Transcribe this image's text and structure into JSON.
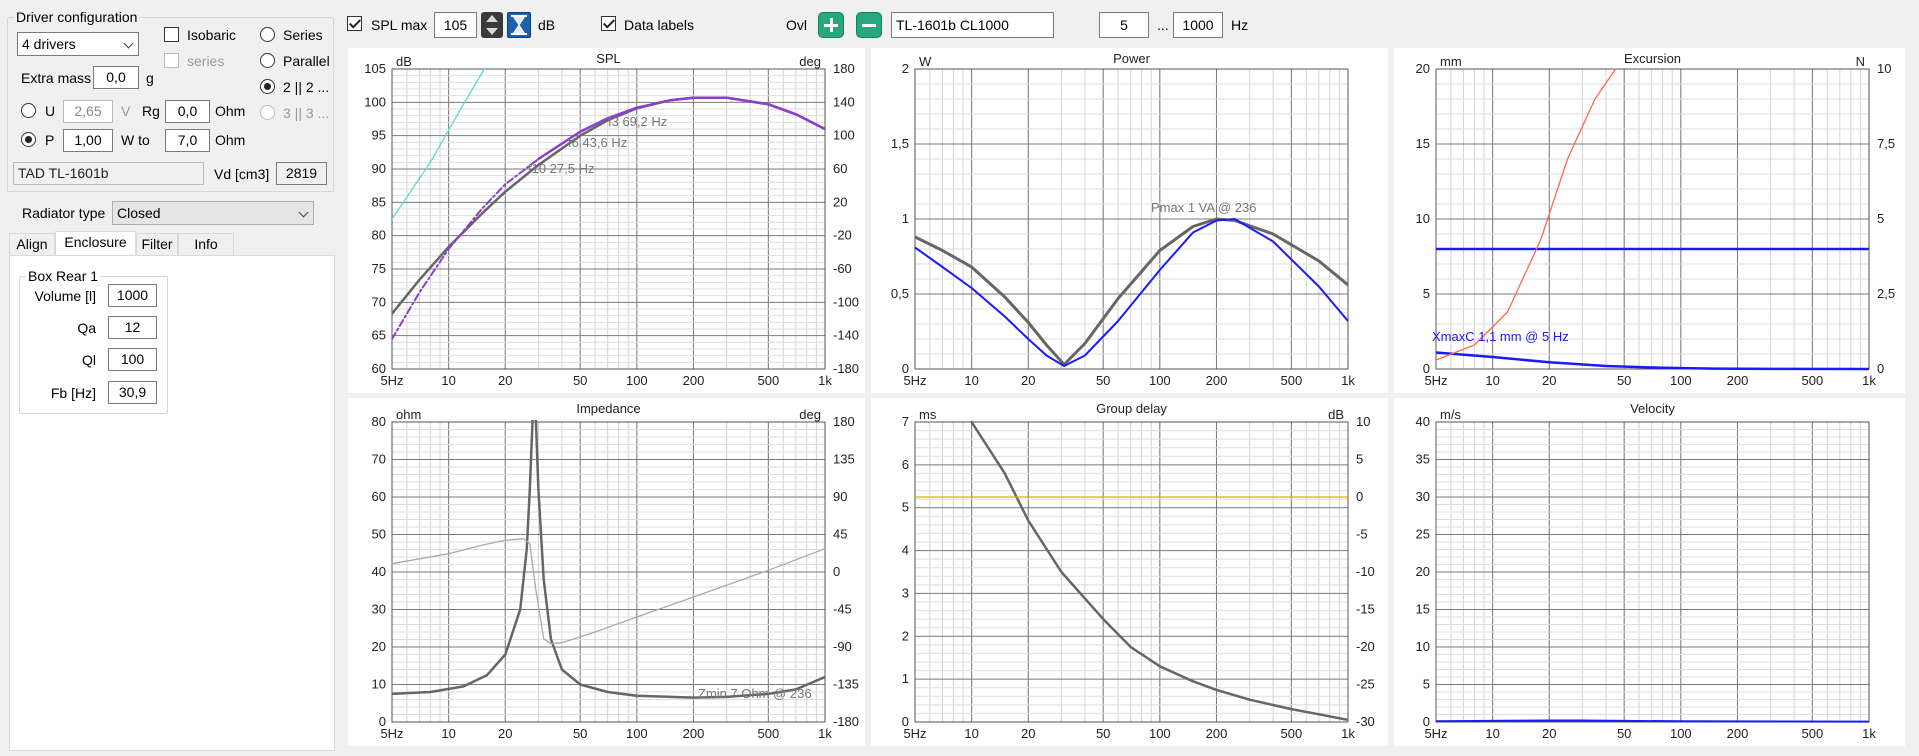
{
  "driver_config": {
    "title": "Driver configuration",
    "drivers_select": "4 drivers",
    "isobaric_label": "Isobaric",
    "series_sub_label": "series",
    "series_label": "Series",
    "parallel_label": "Parallel",
    "mode_22_label": "2 || 2 ...",
    "mode_33_label": "3 || 3 ...",
    "extra_mass_label": "Extra mass",
    "extra_mass_value": "0,0",
    "extra_mass_unit": "g",
    "u_label": "U",
    "u_value": "2,65",
    "u_unit": "V",
    "rg_label": "Rg",
    "rg_value": "0,0",
    "rg_unit": "Ohm",
    "p_label": "P",
    "p_value": "1,00",
    "wto_label": "W to",
    "wto_value": "7,0",
    "wto_unit": "Ohm",
    "driver_name": "TAD TL-1601b",
    "vd_label": "Vd [cm3]",
    "vd_value": "2819"
  },
  "radiator": {
    "label": "Radiator type",
    "value": "Closed"
  },
  "tabs": [
    "Align",
    "Enclosure",
    "Filter",
    "Info"
  ],
  "enclosure": {
    "group_title": "Box Rear 1",
    "volume_label": "Volume [l]",
    "volume_value": "1000",
    "qa_label": "Qa",
    "qa_value": "12",
    "ql_label": "Ql",
    "ql_value": "100",
    "fb_label": "Fb [Hz]",
    "fb_value": "30,9"
  },
  "toolbar": {
    "spl_max_label": "SPL max",
    "spl_max_value": "105",
    "spl_unit": "dB",
    "data_labels_label": "Data labels",
    "ovl_label": "Ovl",
    "name_value": "TL-1601b CL1000",
    "f_from": "5",
    "f_dots": "...",
    "f_to": "1000",
    "f_unit": "Hz"
  },
  "colors": {
    "curve_main": "#666666",
    "curve_blue": "#1a1aff",
    "curve_purple": "#8b3fd1",
    "curve_cyan": "#5ad8e0",
    "curve_orange": "#ff6a4a",
    "curve_yellow": "#d8b400",
    "accent_green": "#26a77d"
  },
  "chart_data": [
    {
      "id": "spl",
      "type": "line",
      "title": "SPL",
      "ylabel_left": "dB",
      "ylabel_right": "deg",
      "xscale": "log",
      "xlim": [
        5,
        1000
      ],
      "x_ticks": [
        "5Hz",
        "10",
        "20",
        "50",
        "100",
        "200",
        "500",
        "1k"
      ],
      "ylim": [
        60,
        105
      ],
      "y_ticks": [
        "60",
        "65",
        "70",
        "75",
        "80",
        "85",
        "90",
        "95",
        "100",
        "105"
      ],
      "y2lim": [
        -180,
        180
      ],
      "y2_ticks": [
        "-180",
        "-140",
        "-100",
        "-60",
        "-20",
        "20",
        "60",
        "100",
        "140",
        "180"
      ],
      "series": [
        {
          "axis": "left",
          "color": "#666666",
          "width": 2.5,
          "x": [
            5,
            7,
            10,
            15,
            20,
            30,
            50,
            70,
            100,
            150,
            200,
            300,
            500,
            700,
            1000
          ],
          "y": [
            68.3,
            73.4,
            78.3,
            83.3,
            86.6,
            90.6,
            95.0,
            97.3,
            99.1,
            100.3,
            100.7,
            100.7,
            99.7,
            98.2,
            96.0
          ]
        },
        {
          "axis": "left",
          "color": "#8b3fd1",
          "width": 2.5,
          "x": [
            30,
            50,
            70,
            100,
            150,
            200,
            300,
            500,
            700,
            1000
          ],
          "y": [
            91.5,
            95.6,
            97.6,
            99.2,
            100.3,
            100.7,
            100.7,
            99.7,
            98.2,
            96.0
          ]
        },
        {
          "axis": "left",
          "color": "#8b3fd1",
          "width": 2,
          "dash": "7 3 2 3",
          "x": [
            5,
            7,
            10,
            15,
            20,
            30
          ],
          "y": [
            64.5,
            71.5,
            78.0,
            84.0,
            87.7,
            91.5
          ]
        },
        {
          "axis": "right",
          "color": "#5ad8e0",
          "width": 1.3,
          "x": [
            5,
            8,
            12,
            15.5
          ],
          "y": [
            0,
            68,
            138,
            180
          ]
        }
      ],
      "annotations": [
        "f3 69,2 Hz",
        "f6 43,6 Hz",
        "f10 27,5 Hz"
      ]
    },
    {
      "id": "power",
      "type": "line",
      "title": "Power",
      "ylabel_left": "W",
      "xscale": "log",
      "xlim": [
        5,
        1000
      ],
      "x_ticks": [
        "5Hz",
        "10",
        "20",
        "50",
        "100",
        "200",
        "500",
        "1k"
      ],
      "ylim": [
        0,
        2
      ],
      "y_ticks": [
        "0",
        "0,5",
        "1",
        "1,5",
        "2"
      ],
      "series": [
        {
          "axis": "left",
          "color": "#666666",
          "width": 3,
          "x": [
            5,
            7,
            10,
            15,
            20,
            25,
            31,
            40,
            60,
            100,
            150,
            200,
            250,
            400,
            700,
            1000
          ],
          "y": [
            0.88,
            0.79,
            0.68,
            0.48,
            0.31,
            0.16,
            0.03,
            0.17,
            0.47,
            0.79,
            0.95,
            1.0,
            0.99,
            0.9,
            0.72,
            0.56
          ]
        },
        {
          "axis": "left",
          "color": "#1a1aff",
          "width": 2,
          "x": [
            5,
            7,
            10,
            15,
            20,
            25,
            31,
            40,
            60,
            100,
            150,
            200,
            250,
            400,
            700,
            1000
          ],
          "y": [
            0.81,
            0.68,
            0.54,
            0.35,
            0.2,
            0.09,
            0.02,
            0.09,
            0.32,
            0.66,
            0.91,
            0.99,
            1.0,
            0.85,
            0.55,
            0.32
          ]
        }
      ],
      "annotations": [
        "Pmax 1 VA  @ 236"
      ]
    },
    {
      "id": "excursion",
      "type": "line",
      "title": "Excursion",
      "ylabel_left": "mm",
      "ylabel_right": "N",
      "xscale": "log",
      "xlim": [
        5,
        1000
      ],
      "x_ticks": [
        "5Hz",
        "10",
        "20",
        "50",
        "100",
        "200",
        "500",
        "1k"
      ],
      "ylim": [
        0,
        20
      ],
      "y_ticks": [
        "0",
        "5",
        "10",
        "15",
        "20"
      ],
      "y2lim": [
        0,
        10
      ],
      "y2_ticks": [
        "0",
        "2,5",
        "5",
        "7,5",
        "10"
      ],
      "series": [
        {
          "axis": "left",
          "color": "#1a1aff",
          "width": 2.5,
          "x": [
            5,
            1000
          ],
          "y": [
            8.0,
            8.0
          ]
        },
        {
          "axis": "left",
          "color": "#1a1aff",
          "width": 2.5,
          "x": [
            5,
            10,
            20,
            40,
            80,
            150,
            300,
            1000
          ],
          "y": [
            1.1,
            0.8,
            0.45,
            0.2,
            0.08,
            0.03,
            0.01,
            0.0
          ]
        },
        {
          "axis": "right",
          "color": "#ff6a4a",
          "width": 1.3,
          "x": [
            5,
            8,
            12,
            18,
            25,
            35,
            45
          ],
          "y": [
            0.3,
            0.8,
            1.9,
            4.3,
            7.0,
            9.0,
            10.0
          ]
        }
      ],
      "annotations": [
        "XmaxC 1,1 mm  @ 5 Hz"
      ]
    },
    {
      "id": "impedance",
      "type": "line",
      "title": "Impedance",
      "ylabel_left": "ohm",
      "ylabel_right": "deg",
      "xscale": "log",
      "xlim": [
        5,
        1000
      ],
      "x_ticks": [
        "5Hz",
        "10",
        "20",
        "50",
        "100",
        "200",
        "500",
        "1k"
      ],
      "ylim": [
        0,
        80
      ],
      "y_ticks": [
        "0",
        "10",
        "20",
        "30",
        "40",
        "50",
        "60",
        "70",
        "80"
      ],
      "y2lim": [
        -180,
        180
      ],
      "y2_ticks": [
        "-180",
        "-135",
        "-90",
        "-45",
        "0",
        "45",
        "90",
        "135",
        "180"
      ],
      "series": [
        {
          "axis": "left",
          "color": "#666666",
          "width": 2.5,
          "x": [
            5,
            8,
            12,
            16,
            20,
            24,
            26,
            27,
            28,
            29,
            30,
            32,
            35,
            40,
            50,
            70,
            100,
            200,
            300,
            500,
            700,
            1000
          ],
          "y": [
            7.5,
            8.0,
            9.5,
            12.5,
            18.0,
            30.0,
            46.0,
            62.0,
            82.0,
            82.0,
            62.0,
            38.0,
            22.0,
            14.0,
            10.0,
            8.0,
            7.0,
            6.5,
            6.7,
            7.5,
            8.7,
            12.0
          ]
        },
        {
          "axis": "right",
          "color": "#aaaaaa",
          "width": 1.3,
          "x": [
            5,
            10,
            15,
            20,
            25,
            27,
            29,
            32,
            35,
            40,
            60,
            100,
            200,
            500,
            1000
          ],
          "y": [
            10,
            22,
            32,
            38,
            40,
            34,
            -20,
            -80,
            -86,
            -85,
            -72,
            -54,
            -30,
            2,
            28
          ]
        }
      ],
      "annotations": [
        "Zmin 7 Ohm @ 236"
      ]
    },
    {
      "id": "group_delay",
      "type": "line",
      "title": "Group delay",
      "ylabel_left": "ms",
      "ylabel_right": "dB",
      "xscale": "log",
      "xlim": [
        5,
        1000
      ],
      "x_ticks": [
        "5Hz",
        "10",
        "20",
        "50",
        "100",
        "200",
        "500",
        "1k"
      ],
      "ylim": [
        0,
        7
      ],
      "y_ticks": [
        "0",
        "1",
        "2",
        "3",
        "4",
        "5",
        "6",
        "7"
      ],
      "y2lim": [
        -30,
        10
      ],
      "y2_ticks": [
        "-30",
        "-25",
        "-20",
        "-15",
        "-10",
        "-5",
        "0",
        "5",
        "10"
      ],
      "series": [
        {
          "axis": "left",
          "color": "#666666",
          "width": 2.5,
          "x": [
            10,
            15,
            20,
            30,
            50,
            70,
            100,
            150,
            200,
            300,
            500,
            700,
            1000
          ],
          "y": [
            7.0,
            5.8,
            4.7,
            3.5,
            2.4,
            1.75,
            1.3,
            0.95,
            0.75,
            0.52,
            0.3,
            0.18,
            0.05
          ]
        },
        {
          "axis": "right",
          "color": "#d8b400",
          "width": 1.3,
          "x": [
            5,
            1000
          ],
          "y": [
            0,
            0
          ]
        }
      ],
      "annotations": []
    },
    {
      "id": "velocity",
      "type": "line",
      "title": "Velocity",
      "ylabel_left": "m/s",
      "xscale": "log",
      "xlim": [
        5,
        1000
      ],
      "x_ticks": [
        "5Hz",
        "10",
        "20",
        "50",
        "100",
        "200",
        "500",
        "1k"
      ],
      "ylim": [
        0,
        40
      ],
      "y_ticks": [
        "0",
        "5",
        "10",
        "15",
        "20",
        "25",
        "30",
        "35",
        "40"
      ],
      "series": [
        {
          "axis": "left",
          "color": "#1a1aff",
          "width": 2,
          "x": [
            5,
            20,
            30,
            100,
            1000
          ],
          "y": [
            0.1,
            0.2,
            0.2,
            0.1,
            0.05
          ]
        }
      ],
      "annotations": []
    }
  ]
}
